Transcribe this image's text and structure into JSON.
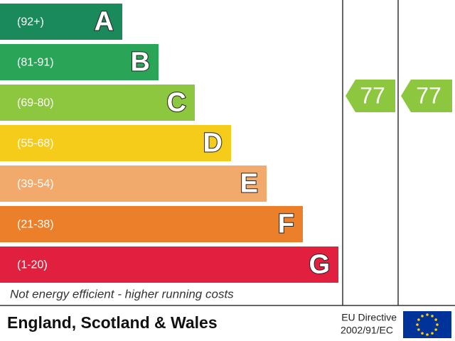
{
  "bands": [
    {
      "range": "(92+)",
      "letter": "A",
      "color": "#1b8a5a"
    },
    {
      "range": "(81-91)",
      "letter": "B",
      "color": "#2aa557"
    },
    {
      "range": "(69-80)",
      "letter": "C",
      "color": "#8dc63f"
    },
    {
      "range": "(55-68)",
      "letter": "D",
      "color": "#f5cc1a"
    },
    {
      "range": "(39-54)",
      "letter": "E",
      "color": "#f2a96c"
    },
    {
      "range": "(21-38)",
      "letter": "F",
      "color": "#ec7f2a"
    },
    {
      "range": "(1-20)",
      "letter": "G",
      "color": "#e1203f"
    }
  ],
  "current": {
    "value": "77",
    "color": "#8dc63f"
  },
  "potential": {
    "value": "77",
    "color": "#8dc63f"
  },
  "note": "Not energy efficient - higher running costs",
  "footer": {
    "region": "England, Scotland & Wales",
    "directive_line1": "EU Directive",
    "directive_line2": "2002/91/EC"
  }
}
